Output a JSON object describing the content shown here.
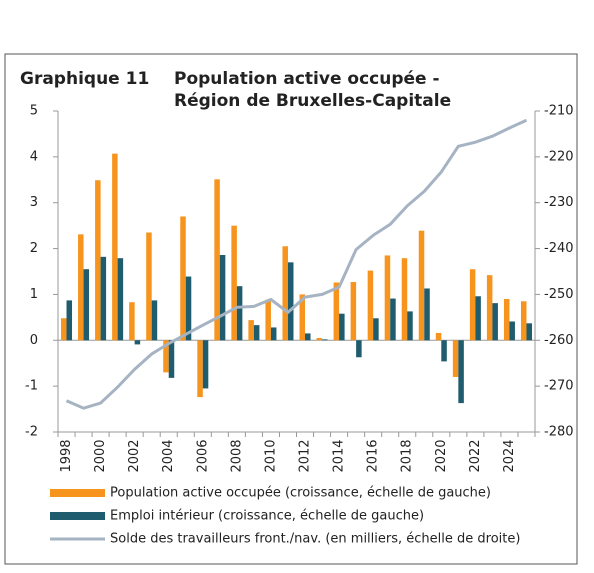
{
  "chart_data": {
    "type": "bar-line",
    "label": "Graphique 11",
    "title": [
      "Population active occupée -",
      "Région de Bruxelles-Capitale"
    ],
    "categories": [
      "1998",
      null,
      "2000",
      null,
      "2002",
      null,
      "2004",
      null,
      "2006",
      null,
      "2008",
      null,
      "2010",
      null,
      "2012",
      null,
      "2014",
      null,
      "2016",
      null,
      "2018",
      null,
      "2020",
      null,
      "2022",
      null,
      "2024",
      null
    ],
    "series": [
      {
        "name": "Population active occupée (croissance, échelle de gauche)",
        "type": "bar",
        "color": "#f7941d",
        "values": [
          0.48,
          2.31,
          3.49,
          4.07,
          0.83,
          2.35,
          -0.7,
          2.7,
          -1.24,
          3.51,
          2.5,
          0.44,
          0.87,
          2.05,
          1.0,
          0.05,
          1.26,
          1.27,
          1.52,
          1.85,
          1.79,
          2.39,
          0.16,
          -0.8,
          1.55,
          1.42,
          0.9,
          0.85
        ]
      },
      {
        "name": "Emploi intérieur (croissance, échelle de gauche)",
        "type": "bar",
        "color": "#1f5c6e",
        "values": [
          0.87,
          1.55,
          1.82,
          1.79,
          -0.09,
          0.87,
          -0.82,
          1.39,
          -1.05,
          1.86,
          1.18,
          0.33,
          0.28,
          1.7,
          0.15,
          0.02,
          0.58,
          -0.37,
          0.48,
          0.91,
          0.63,
          1.13,
          -0.46,
          -1.37,
          0.96,
          0.81,
          0.41,
          0.37
        ]
      },
      {
        "name": "Solde des travailleurs front./nav. (en milliers, échelle de droite)",
        "type": "line",
        "axis": "y2",
        "color": "#a5b3c3",
        "values": [
          -273.2,
          -274.8,
          -273.7,
          -270.2,
          -266.3,
          -263,
          -260.7,
          -258.7,
          -256.7,
          -254.8,
          -252.8,
          -252.6,
          -251.1,
          -253.9,
          -250.6,
          -250,
          -248.4,
          -240.2,
          -237.1,
          -234.7,
          -230.7,
          -227.5,
          -223.3,
          -217.7,
          -216.8,
          -215.5,
          -213.7,
          -212
        ]
      }
    ],
    "ylim": [
      -2,
      5
    ],
    "yticks": [
      -2,
      -1,
      0,
      1,
      2,
      3,
      4,
      5
    ],
    "y2lim": [
      -280,
      -210
    ],
    "y2ticks": [
      -280,
      -270,
      -260,
      -250,
      -240,
      -230,
      -220,
      -210
    ]
  }
}
